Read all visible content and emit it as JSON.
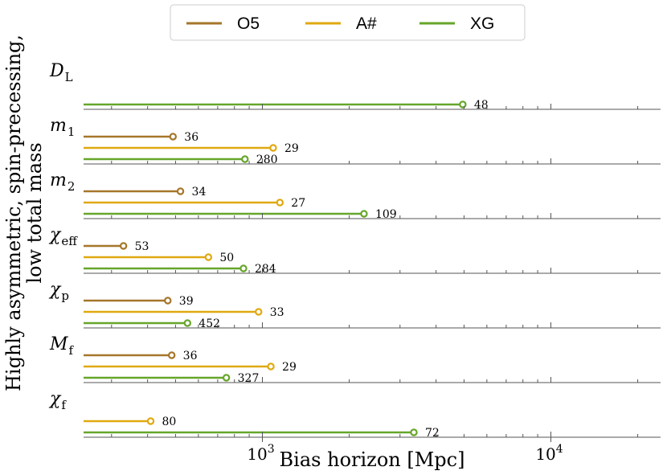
{
  "chart_data": {
    "type": "bar",
    "orientation": "horizontal",
    "x_scale": "log",
    "xlim": [
      240,
      24000
    ],
    "xlabel": "Bias horizon [Mpc]",
    "ylabel_lines": [
      "Highly asymmetric, spin-precessing,",
      "low total mass"
    ],
    "x_tick_labels": [
      {
        "value": 1000,
        "base": "10",
        "exp": "3"
      },
      {
        "value": 10000,
        "base": "10",
        "exp": "4"
      }
    ],
    "legend": {
      "placement": "top-center",
      "entries": [
        {
          "name": "O5",
          "color": "#a6762a"
        },
        {
          "name": "A#",
          "color": "#e0a910"
        },
        {
          "name": "XG",
          "color": "#66a62a"
        }
      ]
    },
    "params": [
      {
        "main": "D",
        "sub": "L",
        "sub_italic": true,
        "bars": [
          {
            "series": "XG",
            "value": 4950,
            "label": "48"
          }
        ]
      },
      {
        "main": "m",
        "sub": "1",
        "sub_italic": false,
        "bars": [
          {
            "series": "O5",
            "value": 490,
            "label": "36"
          },
          {
            "series": "A#",
            "value": 1090,
            "label": "29"
          },
          {
            "series": "XG",
            "value": 870,
            "label": "280"
          }
        ]
      },
      {
        "main": "m",
        "sub": "2",
        "sub_italic": false,
        "bars": [
          {
            "series": "O5",
            "value": 520,
            "label": "34"
          },
          {
            "series": "A#",
            "value": 1150,
            "label": "27"
          },
          {
            "series": "XG",
            "value": 2250,
            "label": "109"
          }
        ]
      },
      {
        "main": "χ",
        "sub": "eff",
        "sub_italic": false,
        "bars": [
          {
            "series": "O5",
            "value": 330,
            "label": "53"
          },
          {
            "series": "A#",
            "value": 650,
            "label": "50"
          },
          {
            "series": "XG",
            "value": 860,
            "label": "284"
          }
        ]
      },
      {
        "main": "χ",
        "sub": "p",
        "sub_italic": false,
        "bars": [
          {
            "series": "O5",
            "value": 470,
            "label": "39"
          },
          {
            "series": "A#",
            "value": 970,
            "label": "33"
          },
          {
            "series": "XG",
            "value": 550,
            "label": "452"
          }
        ]
      },
      {
        "main": "M",
        "sub": "f",
        "sub_italic": false,
        "bars": [
          {
            "series": "O5",
            "value": 485,
            "label": "36"
          },
          {
            "series": "A#",
            "value": 1070,
            "label": "29"
          },
          {
            "series": "XG",
            "value": 750,
            "label": "327"
          }
        ]
      },
      {
        "main": "χ",
        "sub": "f",
        "sub_italic": false,
        "bars": [
          {
            "series": "A#",
            "value": 410,
            "label": "80"
          },
          {
            "series": "XG",
            "value": 3350,
            "label": "72"
          }
        ]
      }
    ]
  }
}
